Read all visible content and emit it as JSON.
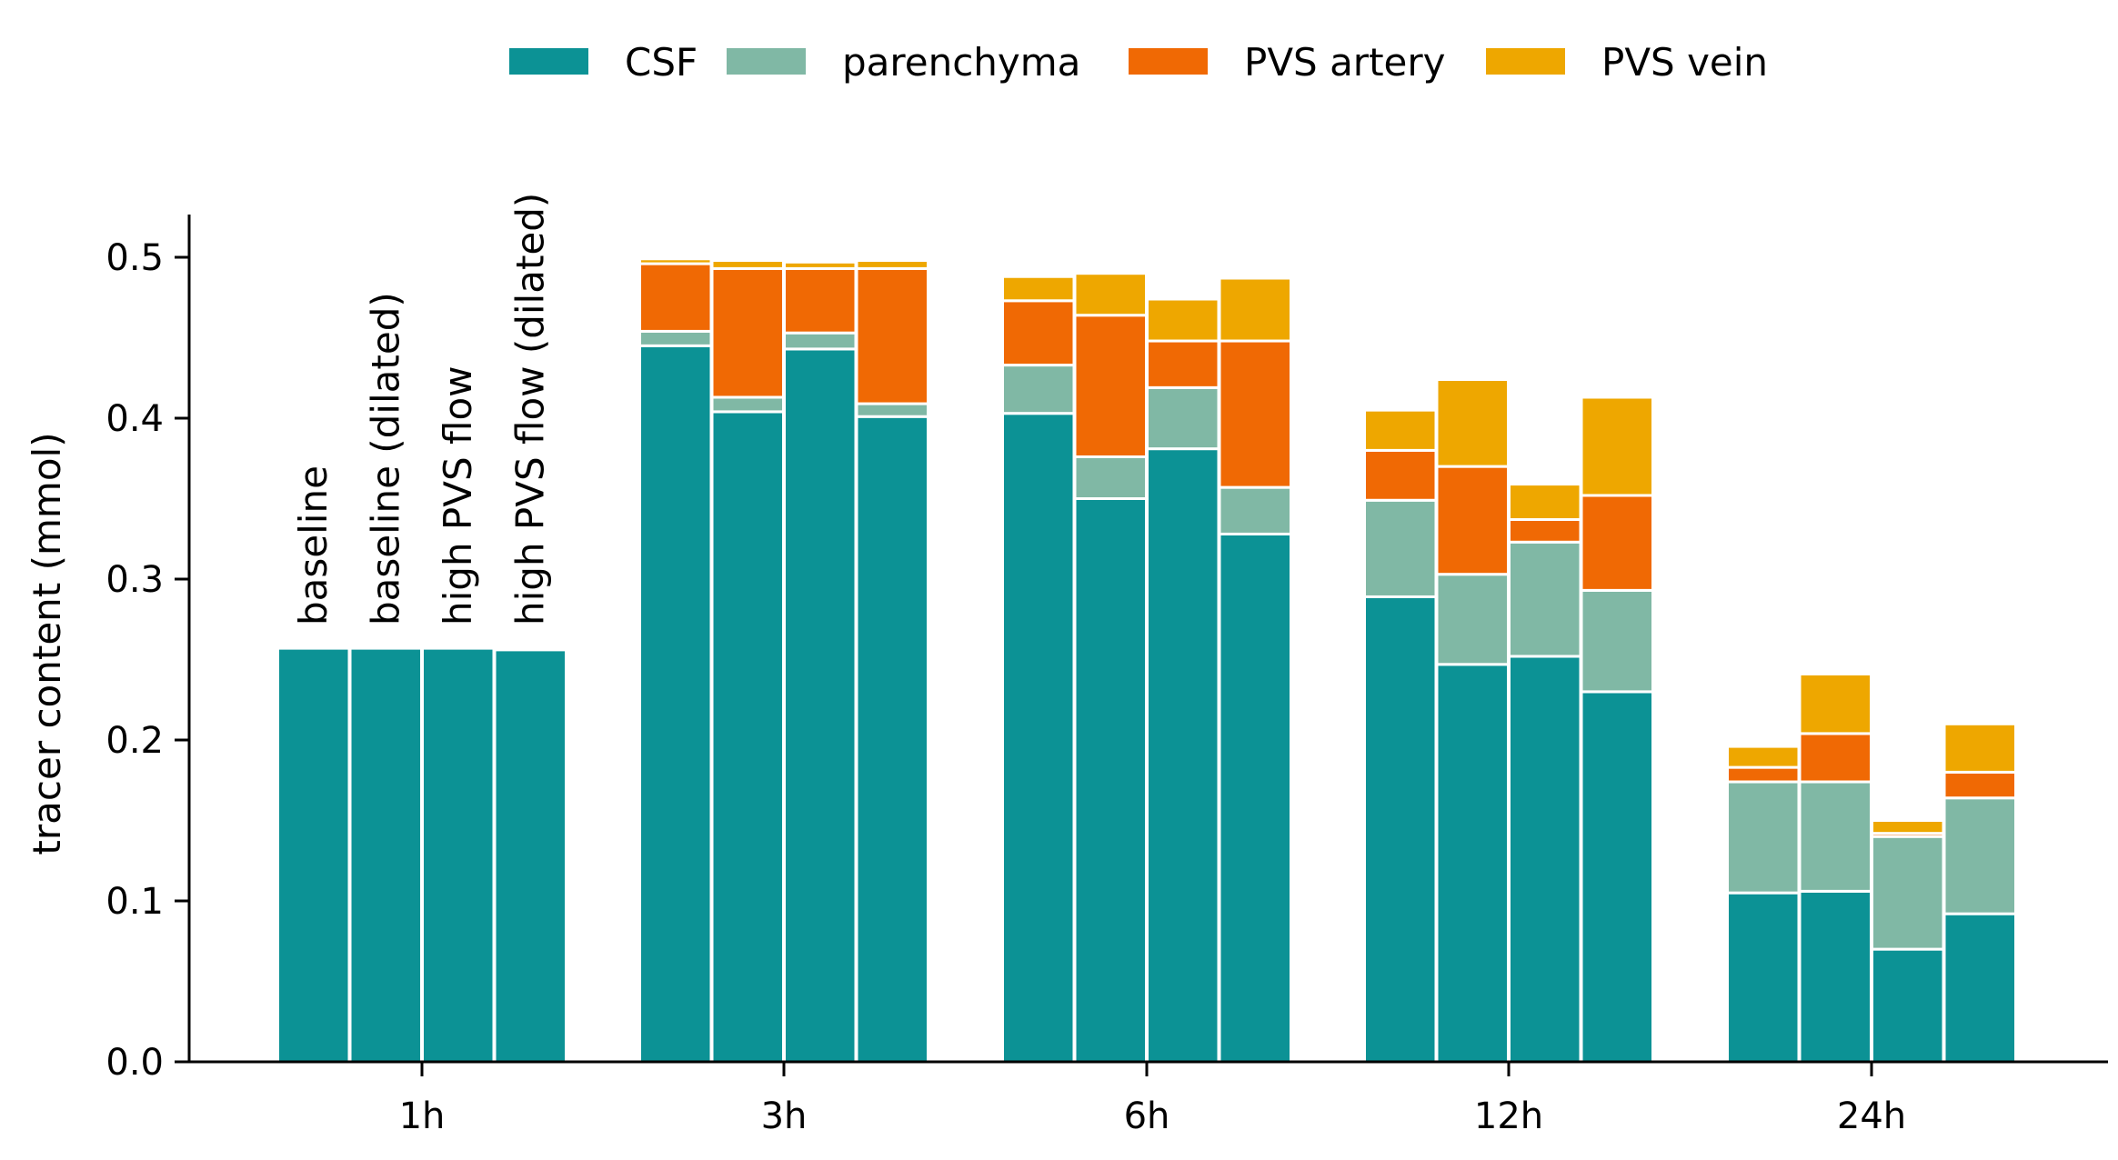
{
  "chart_data": {
    "type": "bar",
    "stacked": true,
    "title": "",
    "xlabel": "",
    "ylabel": "tracer content (mmol)",
    "ylim": [
      0,
      0.525
    ],
    "yticks": [
      "0.0",
      "0.1",
      "0.2",
      "0.3",
      "0.4",
      "0.5"
    ],
    "categories": [
      "1h",
      "3h",
      "6h",
      "12h",
      "24h"
    ],
    "scenarios": [
      "baseline",
      "baseline (dilated)",
      "high PVS flow",
      "high PVS flow (dilated)"
    ],
    "legend_position": "top-center",
    "grid": false,
    "series": [
      {
        "name": "CSF",
        "color": "#0c9295",
        "values": [
          [
            0.257,
            0.257,
            0.257,
            0.256
          ],
          [
            0.445,
            0.404,
            0.443,
            0.401
          ],
          [
            0.403,
            0.35,
            0.381,
            0.328
          ],
          [
            0.289,
            0.247,
            0.252,
            0.23
          ],
          [
            0.105,
            0.106,
            0.07,
            0.092
          ]
        ]
      },
      {
        "name": "parenchyma",
        "color": "#80b8a5",
        "values": [
          [
            0,
            0,
            0,
            0
          ],
          [
            0.009,
            0.009,
            0.01,
            0.008
          ],
          [
            0.03,
            0.026,
            0.038,
            0.029
          ],
          [
            0.06,
            0.056,
            0.071,
            0.063
          ],
          [
            0.069,
            0.068,
            0.07,
            0.072
          ]
        ]
      },
      {
        "name": "PVS artery",
        "color": "#f06904",
        "values": [
          [
            0,
            0,
            0,
            0
          ],
          [
            0.042,
            0.08,
            0.04,
            0.084
          ],
          [
            0.04,
            0.088,
            0.029,
            0.091
          ],
          [
            0.031,
            0.067,
            0.014,
            0.059
          ],
          [
            0.009,
            0.03,
            0.002,
            0.016
          ]
        ]
      },
      {
        "name": "PVS vein",
        "color": "#eea700",
        "values": [
          [
            0,
            0,
            0,
            0
          ],
          [
            0.003,
            0.005,
            0.004,
            0.005
          ],
          [
            0.015,
            0.026,
            0.026,
            0.039
          ],
          [
            0.025,
            0.054,
            0.022,
            0.061
          ],
          [
            0.013,
            0.037,
            0.008,
            0.03
          ]
        ]
      }
    ]
  }
}
